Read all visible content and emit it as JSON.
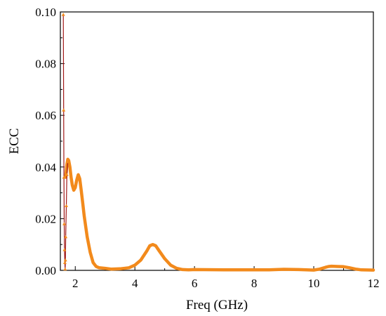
{
  "chart_data": {
    "type": "line",
    "title": "",
    "xlabel": "Freq (GHz)",
    "ylabel": "ECC",
    "xlim": [
      1.5,
      12
    ],
    "ylim": [
      0,
      0.1
    ],
    "xticks": [
      2,
      4,
      6,
      8,
      10,
      12
    ],
    "yticks": [
      0.0,
      0.02,
      0.04,
      0.06,
      0.08,
      0.1
    ],
    "ytick_labels": [
      "0.00",
      "0.02",
      "0.04",
      "0.06",
      "0.08",
      "0.10"
    ],
    "grid": false,
    "legend": "none",
    "series": [
      {
        "color": "#f28a1c",
        "style": "thick line",
        "x": [
          1.68,
          1.72,
          1.75,
          1.78,
          1.82,
          1.86,
          1.9,
          1.95,
          2.0,
          2.05,
          2.1,
          2.15,
          2.2,
          2.25,
          2.3,
          2.4,
          2.5,
          2.6,
          2.7,
          2.8,
          3.0,
          3.2,
          3.5,
          3.8,
          4.0,
          4.2,
          4.4,
          4.5,
          4.6,
          4.7,
          4.8,
          5.0,
          5.2,
          5.4,
          5.6,
          5.8,
          6.0,
          7.0,
          8.0,
          8.5,
          9.0,
          9.5,
          10.0,
          10.2,
          10.4,
          10.5,
          10.6,
          10.8,
          11.0,
          11.2,
          11.4,
          11.6,
          12.0
        ],
        "y": [
          0.036,
          0.041,
          0.043,
          0.0425,
          0.04,
          0.036,
          0.033,
          0.031,
          0.032,
          0.035,
          0.037,
          0.0355,
          0.031,
          0.026,
          0.021,
          0.013,
          0.007,
          0.003,
          0.0015,
          0.001,
          0.0008,
          0.0005,
          0.0006,
          0.001,
          0.002,
          0.004,
          0.0075,
          0.0095,
          0.01,
          0.0095,
          0.0078,
          0.0045,
          0.002,
          0.0008,
          0.0003,
          0.0002,
          0.0003,
          0.0002,
          0.0002,
          0.0002,
          0.0004,
          0.0003,
          0.0001,
          0.0005,
          0.0012,
          0.0015,
          0.0016,
          0.0015,
          0.0014,
          0.001,
          0.0005,
          0.0002,
          0.0001
        ]
      },
      {
        "color": "#a01818",
        "style": "thin line with triangle markers",
        "marker_color": "#f28a1c",
        "x": [
          1.6,
          1.61,
          1.62,
          1.63,
          1.64,
          1.65,
          1.66,
          1.67,
          1.68,
          1.7,
          1.72,
          1.75
        ],
        "y": [
          0.099,
          0.062,
          0.036,
          0.018,
          0.008,
          0.003,
          0.0005,
          0.004,
          0.013,
          0.025,
          0.037,
          0.042
        ]
      }
    ]
  }
}
